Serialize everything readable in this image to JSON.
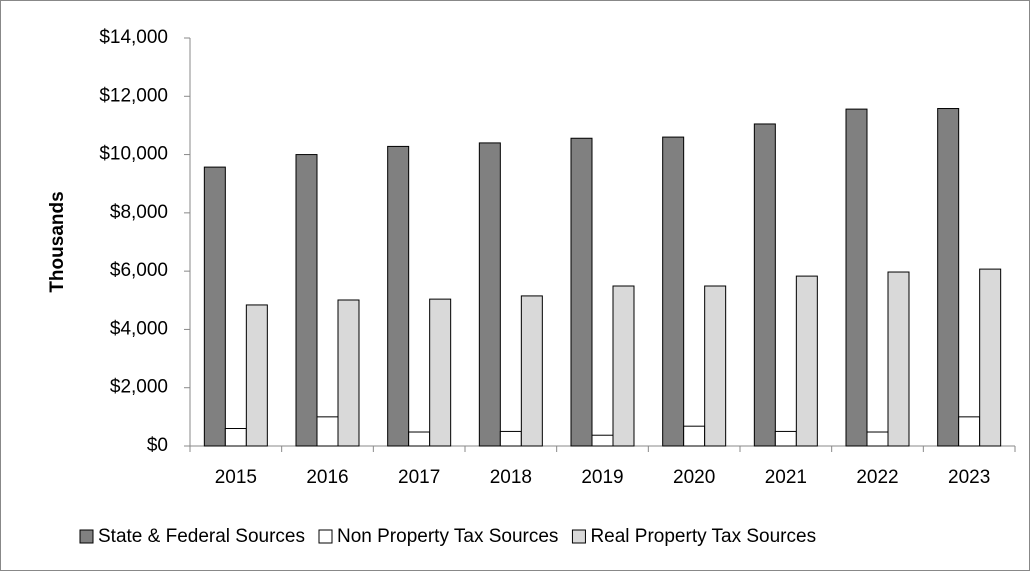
{
  "chart_data": {
    "type": "bar",
    "y_label": "Thousands",
    "categories": [
      "2015",
      "2016",
      "2017",
      "2018",
      "2019",
      "2020",
      "2021",
      "2022",
      "2023"
    ],
    "series": [
      {
        "name": "State & Federal Sources",
        "color": "#808080",
        "values": [
          9570,
          10000,
          10280,
          10400,
          10560,
          10600,
          11050,
          11560,
          11580
        ]
      },
      {
        "name": "Non Property Tax Sources",
        "color": "#ffffff",
        "values": [
          600,
          1000,
          480,
          500,
          370,
          680,
          500,
          480,
          1000
        ]
      },
      {
        "name": "Real Property Tax Sources",
        "color": "#d9d9d9",
        "values": [
          4840,
          5010,
          5040,
          5150,
          5490,
          5490,
          5830,
          5970,
          6070
        ]
      }
    ],
    "ylim": [
      0,
      14000
    ],
    "yticks": [
      {
        "value": 0,
        "label": "$0"
      },
      {
        "value": 2000,
        "label": "$2,000"
      },
      {
        "value": 4000,
        "label": "$4,000"
      },
      {
        "value": 6000,
        "label": "$6,000"
      },
      {
        "value": 8000,
        "label": "$8,000"
      },
      {
        "value": 10000,
        "label": "$10,000"
      },
      {
        "value": 12000,
        "label": "$12,000"
      },
      {
        "value": 14000,
        "label": "$14,000"
      }
    ],
    "grid": false,
    "legend": "bottom"
  }
}
